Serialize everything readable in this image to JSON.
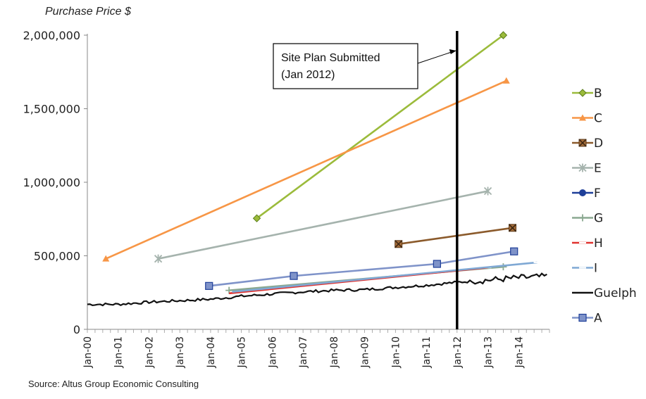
{
  "chart_data": {
    "type": "line",
    "ylabel": "Purchase Price $",
    "source": "Source: Altus Group Economic Consulting",
    "ylim": [
      0,
      2000000
    ],
    "yticks": [
      0,
      500000,
      1000000,
      1500000,
      2000000
    ],
    "ytick_labels": [
      "0",
      "500,000",
      "1,000,000",
      "1,500,000",
      "2,000,000"
    ],
    "xlim": [
      2000.0,
      2015.0
    ],
    "xtick_labels": [
      "Jan-00",
      "Jan-01",
      "Jan-02",
      "Jan-03",
      "Jan-04",
      "Jan-05",
      "Jan-06",
      "Jan-07",
      "Jan-08",
      "Jan-09",
      "Jan-10",
      "Jan-11",
      "Jan-12",
      "Jan-13",
      "Jan-14"
    ],
    "grid": false,
    "legend_position": "right",
    "annotation": {
      "lines": [
        "Site Plan Submitted",
        "(Jan 2012)"
      ],
      "x": 2012.0
    },
    "series": [
      {
        "name": "B",
        "color": "#9bbb3b",
        "marker": "diamond",
        "x": [
          2005.5,
          2013.5
        ],
        "y": [
          755000,
          2000000
        ]
      },
      {
        "name": "C",
        "color": "#f79646",
        "marker": "triangle",
        "x": [
          2000.6,
          2013.6
        ],
        "y": [
          480000,
          1690000
        ]
      },
      {
        "name": "D",
        "color": "#8b5a2b",
        "marker": "xbox",
        "x": [
          2010.1,
          2013.8
        ],
        "y": [
          580000,
          690000
        ]
      },
      {
        "name": "E",
        "color": "#a5b3ad",
        "marker": "star",
        "x": [
          2002.3,
          2013.0
        ],
        "y": [
          480000,
          940000
        ]
      },
      {
        "name": "F",
        "color": "#1f3f99",
        "marker": "circle",
        "x": [],
        "y": []
      },
      {
        "name": "G",
        "color": "#8aa890",
        "marker": "plus",
        "x": [
          2004.6,
          2013.5
        ],
        "y": [
          265000,
          425000
        ]
      },
      {
        "name": "H",
        "color": "#e0322f",
        "marker": "dash",
        "x": [
          2004.6,
          2013.0
        ],
        "y": [
          245000,
          420000
        ]
      },
      {
        "name": "I",
        "color": "#7fa8d4",
        "marker": "dash",
        "x": [
          2004.7,
          2014.6
        ],
        "y": [
          255000,
          455000
        ]
      },
      {
        "name": "Guelph",
        "color": "#111111",
        "marker": "none",
        "x": [],
        "y": [],
        "note": "monthly series"
      },
      {
        "name": "A",
        "color": "#7f93c9",
        "marker": "square",
        "x": [
          2003.95,
          2006.7,
          2011.35,
          2013.85
        ],
        "y": [
          295000,
          363000,
          445000,
          530000
        ]
      }
    ],
    "guelph": {
      "start": 2000.0,
      "end": 2014.95,
      "anchors": [
        [
          2000.0,
          170000
        ],
        [
          2001.0,
          170000
        ],
        [
          2002.0,
          185000
        ],
        [
          2003.0,
          195000
        ],
        [
          2004.0,
          205000
        ],
        [
          2005.0,
          225000
        ],
        [
          2006.0,
          240000
        ],
        [
          2007.0,
          255000
        ],
        [
          2008.0,
          265000
        ],
        [
          2009.0,
          270000
        ],
        [
          2010.0,
          285000
        ],
        [
          2011.0,
          300000
        ],
        [
          2012.0,
          320000
        ],
        [
          2013.0,
          335000
        ],
        [
          2014.0,
          350000
        ],
        [
          2014.95,
          360000
        ]
      ]
    }
  }
}
